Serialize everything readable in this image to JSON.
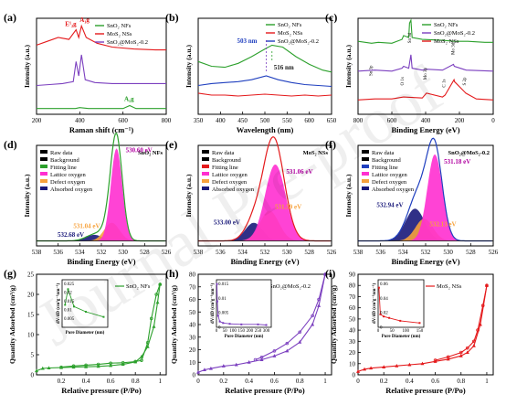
{
  "watermark": "Journal Pre-proof",
  "chart_data": [
    {
      "panel": "(a)",
      "type": "line",
      "xlabel": "Raman shift (cm⁻¹)",
      "ylabel": "Intensity (a.u.)",
      "xlim": [
        200,
        800
      ],
      "xticks": [
        200,
        400,
        600,
        800
      ],
      "series": [
        {
          "name": "SnO₂ NFs",
          "color": "#2ca02c",
          "x": [
            200,
            300,
            380,
            400,
            440,
            500,
            600,
            631,
            660,
            700,
            800
          ],
          "y": [
            0.06,
            0.06,
            0.06,
            0.07,
            0.06,
            0.06,
            0.06,
            0.09,
            0.06,
            0.06,
            0.06
          ]
        },
        {
          "name": "MoS₂ NSs",
          "color": "#e41a1c",
          "x": [
            200,
            250,
            300,
            350,
            383,
            395,
            408,
            430,
            480,
            550,
            650,
            750,
            800
          ],
          "y": [
            0.72,
            0.76,
            0.8,
            0.78,
            0.88,
            0.8,
            0.92,
            0.8,
            0.74,
            0.7,
            0.68,
            0.67,
            0.67
          ]
        },
        {
          "name": "SnO₂@MoS₂-0.2",
          "color": "#7b3fbf",
          "x": [
            200,
            260,
            320,
            370,
            383,
            395,
            408,
            425,
            470,
            550,
            650,
            800
          ],
          "y": [
            0.3,
            0.31,
            0.32,
            0.34,
            0.55,
            0.4,
            0.62,
            0.36,
            0.33,
            0.32,
            0.32,
            0.32
          ]
        }
      ],
      "annotations": [
        "E¹₂g",
        "A₁g",
        "A₁g"
      ]
    },
    {
      "panel": "(b)",
      "type": "line",
      "xlabel": "Wavelength (nm)",
      "ylabel": "Intensity (a.u.)",
      "xlim": [
        350,
        650
      ],
      "xticks": [
        350,
        400,
        450,
        500,
        550,
        600,
        650
      ],
      "series": [
        {
          "name": "SnO₂ NFs",
          "color": "#2ca02c",
          "x": [
            350,
            380,
            410,
            440,
            470,
            500,
            516,
            540,
            570,
            600,
            630,
            650
          ],
          "y": [
            0.55,
            0.5,
            0.49,
            0.53,
            0.6,
            0.68,
            0.72,
            0.7,
            0.6,
            0.52,
            0.46,
            0.44
          ]
        },
        {
          "name": "MoS₂ NSs",
          "color": "#e41a1c",
          "x": [
            350,
            380,
            410,
            440,
            470,
            500,
            530,
            560,
            590,
            620,
            650
          ],
          "y": [
            0.22,
            0.2,
            0.2,
            0.19,
            0.2,
            0.21,
            0.2,
            0.19,
            0.2,
            0.19,
            0.2
          ]
        },
        {
          "name": "SnO₂@MoS₂-0.2",
          "color": "#1f3fbf",
          "x": [
            350,
            380,
            410,
            440,
            470,
            503,
            530,
            560,
            590,
            620,
            650
          ],
          "y": [
            0.3,
            0.32,
            0.33,
            0.34,
            0.36,
            0.4,
            0.36,
            0.33,
            0.31,
            0.3,
            0.29
          ]
        }
      ],
      "annotations": [
        "503 nm",
        "516 nm"
      ]
    },
    {
      "panel": "(c)",
      "type": "line",
      "xlabel": "Binding Energy (eV)",
      "ylabel": "Intensity (a.u.)",
      "xlim": [
        800,
        0
      ],
      "xticks": [
        800,
        600,
        400,
        200,
        0
      ],
      "series": [
        {
          "name": "SnO₂ NFs",
          "color": "#2ca02c",
          "x": [
            800,
            720,
            680,
            600,
            540,
            530,
            500,
            495,
            487,
            480,
            420,
            300,
            230,
            150,
            50,
            0
          ],
          "y": [
            0.76,
            0.74,
            0.75,
            0.74,
            0.78,
            0.82,
            0.8,
            0.95,
            0.98,
            0.8,
            0.78,
            0.77,
            0.76,
            0.76,
            0.75,
            0.75
          ]
        },
        {
          "name": "SnO₂@MoS₂-0.2",
          "color": "#7b3fbf",
          "x": [
            800,
            700,
            600,
            540,
            530,
            500,
            487,
            480,
            420,
            395,
            300,
            235,
            230,
            160,
            0
          ],
          "y": [
            0.45,
            0.46,
            0.45,
            0.48,
            0.5,
            0.48,
            0.62,
            0.48,
            0.46,
            0.47,
            0.46,
            0.52,
            0.5,
            0.46,
            0.45
          ]
        },
        {
          "name": "MoS₂ NSs",
          "color": "#e41a1c",
          "x": [
            800,
            700,
            600,
            530,
            420,
            395,
            300,
            285,
            232,
            229,
            162,
            100,
            0
          ],
          "y": [
            0.15,
            0.16,
            0.16,
            0.18,
            0.17,
            0.22,
            0.18,
            0.2,
            0.36,
            0.34,
            0.22,
            0.16,
            0.15
          ]
        }
      ],
      "annotations": [
        "Sn 3p",
        "O 1s",
        "Sn 3d",
        "Mo 3p",
        "C 1s",
        "Mo 3d",
        "S 2p"
      ]
    },
    {
      "panel": "(d)",
      "type": "line",
      "xlabel": "Binding Energy (eV)",
      "ylabel": "Intensity (a.u.)",
      "xlim": [
        538,
        526
      ],
      "xticks": [
        538,
        536,
        534,
        532,
        530,
        528,
        526
      ],
      "title_inside": "SnO₂ NFs",
      "legend": [
        "Raw data",
        "Background",
        "Fitting line",
        "Lattice oxygen",
        "Defect oxygen",
        "Absorbed oxygen"
      ],
      "peaks": [
        {
          "label": "530.60 eV",
          "center": 530.6,
          "height": 0.92,
          "width": 0.75,
          "color": "#ff2fd0"
        },
        {
          "label": "531.04 eV",
          "center": 531.04,
          "height": 0.18,
          "width": 1.0,
          "color": "#f7a23c"
        },
        {
          "label": "532.68 eV",
          "center": 532.68,
          "height": 0.06,
          "width": 1.1,
          "color": "#1a1a7a"
        }
      ]
    },
    {
      "panel": "(e)",
      "type": "line",
      "xlabel": "Binding Energy (eV)",
      "ylabel": "Intensity (a.u.)",
      "xlim": [
        538,
        526
      ],
      "xticks": [
        538,
        536,
        534,
        532,
        530,
        528,
        526
      ],
      "title_inside": "MoS₂ NSs",
      "legend": [
        "Raw data",
        "Background",
        "Fitting line",
        "Lattice oxygen",
        "Defect oxygen",
        "Absorbed oxygen"
      ],
      "peaks": [
        {
          "label": "531.06 eV",
          "center": 531.06,
          "height": 0.76,
          "width": 1.3,
          "color": "#ff2fd0"
        },
        {
          "label": "531.59 eV",
          "center": 531.59,
          "height": 0.3,
          "width": 1.2,
          "color": "#f7a23c"
        },
        {
          "label": "533.00 eV",
          "center": 533.0,
          "height": 0.18,
          "width": 1.1,
          "color": "#1a1a7a"
        }
      ]
    },
    {
      "panel": "(f)",
      "type": "line",
      "xlabel": "Binding Energy (eV)",
      "ylabel": "Intensity (a.u.)",
      "xlim": [
        538,
        526
      ],
      "xticks": [
        538,
        536,
        534,
        532,
        530,
        528,
        526
      ],
      "title_inside": "SnO₂@MoS₂-0.2",
      "legend": [
        "Raw data",
        "Background",
        "Fitting line",
        "Lattice oxygen",
        "Defect oxygen",
        "Absorbed oxygen"
      ],
      "peaks": [
        {
          "label": "531.18 eV",
          "center": 531.18,
          "height": 0.86,
          "width": 0.95,
          "color": "#ff2fd0"
        },
        {
          "label": "532.13 eV",
          "center": 532.13,
          "height": 0.22,
          "width": 1.1,
          "color": "#f7a23c"
        },
        {
          "label": "532.94 eV",
          "center": 532.94,
          "height": 0.32,
          "width": 1.2,
          "color": "#1a1a7a"
        }
      ]
    },
    {
      "panel": "(g)",
      "type": "line",
      "xlabel": "Relative pressure (P/Po)",
      "ylabel": "Quantity Adsorbed (cm³/g)",
      "xlim": [
        0,
        1.05
      ],
      "ylim": [
        0,
        25
      ],
      "xticks": [
        0.2,
        0.4,
        0.6,
        0.8,
        1.0
      ],
      "yticks": [
        0,
        5,
        10,
        15,
        20,
        25
      ],
      "series": [
        {
          "name": "SnO₂ NFs",
          "color": "#2ca02c",
          "x": [
            0.0,
            0.05,
            0.1,
            0.2,
            0.3,
            0.4,
            0.5,
            0.6,
            0.7,
            0.8,
            0.85,
            0.9,
            0.95,
            0.98,
            1.0
          ],
          "y": [
            1.0,
            1.6,
            1.7,
            1.8,
            1.9,
            2.0,
            2.1,
            2.3,
            2.6,
            3.2,
            4.5,
            7.0,
            12.0,
            18.0,
            22.5
          ]
        },
        {
          "name": "SnO₂ NFs desorption",
          "color": "#2ca02c",
          "x": [
            1.0,
            0.97,
            0.93,
            0.9,
            0.85,
            0.8,
            0.7,
            0.6,
            0.5,
            0.4,
            0.3,
            0.2
          ],
          "y": [
            22.5,
            20.0,
            14.0,
            8.0,
            3.6,
            3.3,
            3.0,
            2.9,
            2.6,
            2.4,
            2.2,
            1.9
          ]
        }
      ],
      "inset": {
        "xlabel": "Pore Diameter (nm)",
        "ylabel": "dV/dD (cm³g⁻¹nm⁻¹)",
        "yticks": [
          0.005,
          0.01,
          0.015,
          0.02,
          0.025
        ],
        "x": [
          5,
          10,
          20,
          40,
          70
        ],
        "y": [
          0.013,
          0.022,
          0.012,
          0.009,
          0.006
        ]
      }
    },
    {
      "panel": "(h)",
      "type": "line",
      "xlabel": "Relative pressure (P/Po)",
      "ylabel": "Quantity Adsorbed (cm³/g)",
      "xlim": [
        0,
        1.05
      ],
      "ylim": [
        0,
        80
      ],
      "xticks": [
        0.0,
        0.2,
        0.4,
        0.6,
        0.8,
        1.0
      ],
      "yticks": [
        0,
        10,
        20,
        30,
        40,
        50,
        60,
        70,
        80
      ],
      "series": [
        {
          "name": "SnO₂@MoS₂-0.2",
          "color": "#7b3fbf",
          "x": [
            0.0,
            0.05,
            0.1,
            0.2,
            0.3,
            0.4,
            0.5,
            0.6,
            0.7,
            0.8,
            0.9,
            0.95,
            1.0
          ],
          "y": [
            2,
            4,
            5,
            7,
            8,
            10,
            12,
            15,
            19,
            26,
            40,
            55,
            80
          ]
        },
        {
          "name": "SnO₂@MoS₂-0.2 desorption",
          "color": "#7b3fbf",
          "x": [
            1.0,
            0.95,
            0.9,
            0.8,
            0.7,
            0.6,
            0.5,
            0.45
          ],
          "y": [
            80,
            60,
            47,
            34,
            25,
            19,
            14,
            12
          ]
        }
      ],
      "inset": {
        "xlabel": "Pore Diameter (nm)",
        "ylabel": "dV/dD (cm³g⁻¹nm⁻¹)",
        "yticks": [
          0.0,
          0.005,
          0.01,
          0.015
        ],
        "xticks": [
          0,
          50,
          100,
          150,
          200,
          250,
          300
        ],
        "x": [
          3,
          5,
          10,
          20,
          40,
          80,
          150,
          250,
          300
        ],
        "y": [
          0.015,
          0.009,
          0.004,
          0.002,
          0.0015,
          0.0012,
          0.001,
          0.001,
          0.0008
        ]
      }
    },
    {
      "panel": "(i)",
      "type": "line",
      "xlabel": "Relative pressure (P/Po)",
      "ylabel": "Quantity Adsorbed (cm³/g)",
      "xlim": [
        0,
        1.05
      ],
      "ylim": [
        0,
        90
      ],
      "xticks": [
        0.0,
        0.2,
        0.4,
        0.6,
        0.8,
        1.0
      ],
      "yticks": [
        0,
        10,
        20,
        30,
        40,
        50,
        60,
        70,
        80,
        90
      ],
      "series": [
        {
          "name": "MoS₂ NSs",
          "color": "#e41a1c",
          "x": [
            0.0,
            0.05,
            0.1,
            0.2,
            0.3,
            0.4,
            0.5,
            0.6,
            0.7,
            0.8,
            0.85,
            0.9,
            0.95,
            1.0
          ],
          "y": [
            3,
            5,
            6,
            7,
            8,
            9,
            10,
            12,
            14,
            17,
            20,
            26,
            45,
            80
          ]
        },
        {
          "name": "MoS₂ NSs desorption",
          "color": "#e41a1c",
          "x": [
            1.0,
            0.97,
            0.93,
            0.9,
            0.85,
            0.8,
            0.7,
            0.6
          ],
          "y": [
            80,
            62,
            40,
            30,
            24,
            20,
            16,
            13
          ]
        }
      ],
      "inset": {
        "xlabel": "Pore Diameter (nm)",
        "ylabel": "dV/dD (cm³g⁻¹nm⁻¹)",
        "yticks": [
          0.0,
          0.02,
          0.04,
          0.06
        ],
        "xticks": [
          0,
          50,
          100,
          150
        ],
        "x": [
          3,
          8,
          20,
          40,
          80,
          150
        ],
        "y": [
          0.055,
          0.018,
          0.015,
          0.013,
          0.009,
          0.006
        ]
      }
    }
  ]
}
